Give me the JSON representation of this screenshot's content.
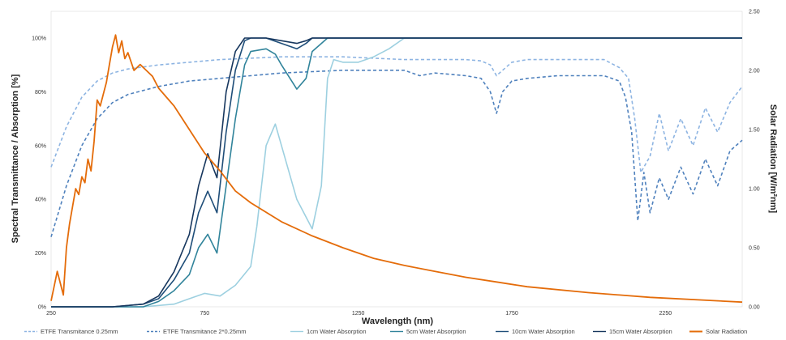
{
  "chart_data": {
    "type": "line",
    "title": "",
    "xlabel": "Wavelength (nm)",
    "ylabel": "Spectral Transmittance / Absorption [%]",
    "y2label": "Solar Radiation [W/m²nm]",
    "xlim": [
      250,
      2500
    ],
    "ylim": [
      0,
      100
    ],
    "y2lim": [
      0,
      2.5
    ],
    "x_ticks": [
      "250",
      "750",
      "1250",
      "1750",
      "2250"
    ],
    "y_ticks": [
      "0%",
      "20%",
      "40%",
      "60%",
      "80%",
      "100%"
    ],
    "y2_ticks": [
      "0.00",
      "0.50",
      "1.00",
      "1.50",
      "2.00",
      "2.50"
    ],
    "grid": false,
    "legend_position": "bottom",
    "series": [
      {
        "name": "ETFE Transmitance 0.25mm",
        "axis": "left",
        "color": "#8db4e2",
        "dash": "4,3",
        "x": [
          250,
          300,
          350,
          400,
          450,
          500,
          600,
          700,
          800,
          900,
          1000,
          1100,
          1200,
          1300,
          1400,
          1500,
          1600,
          1650,
          1680,
          1700,
          1720,
          1750,
          1800,
          1900,
          2000,
          2050,
          2100,
          2130,
          2150,
          2170,
          2200,
          2230,
          2260,
          2300,
          2340,
          2380,
          2420,
          2460,
          2500
        ],
        "y": [
          52,
          67,
          78,
          84,
          87,
          88.5,
          90,
          91,
          92,
          92.5,
          93,
          93,
          93,
          92.5,
          92,
          92,
          92,
          91.5,
          90,
          86,
          88,
          91,
          92,
          92,
          92,
          92,
          89,
          85,
          70,
          50,
          56,
          72,
          58,
          70,
          60,
          74,
          65,
          76,
          82
        ]
      },
      {
        "name": "ETFE Transmitance 2*0.25mm",
        "axis": "left",
        "color": "#4f81bd",
        "dash": "4,3",
        "x": [
          250,
          300,
          350,
          400,
          450,
          500,
          600,
          700,
          800,
          900,
          1000,
          1100,
          1200,
          1300,
          1400,
          1450,
          1500,
          1600,
          1650,
          1680,
          1700,
          1720,
          1750,
          1800,
          1900,
          2000,
          2050,
          2100,
          2120,
          2140,
          2160,
          2180,
          2200,
          2230,
          2260,
          2300,
          2340,
          2380,
          2420,
          2460,
          2500
        ],
        "y": [
          26,
          45,
          60,
          70,
          76,
          79,
          82,
          84,
          85,
          86,
          87,
          87.5,
          88,
          88,
          88,
          86,
          87,
          86,
          85,
          80,
          72,
          80,
          84,
          85,
          86,
          86,
          86,
          84,
          78,
          65,
          32,
          50,
          35,
          48,
          40,
          52,
          42,
          55,
          45,
          58,
          62
        ]
      },
      {
        "name": "1cm Water Absorption",
        "axis": "left",
        "color": "#9dd0e0",
        "dash": "",
        "x": [
          250,
          350,
          450,
          550,
          650,
          700,
          750,
          800,
          850,
          900,
          920,
          950,
          980,
          1000,
          1050,
          1100,
          1130,
          1150,
          1170,
          1200,
          1250,
          1300,
          1350,
          1400,
          1500,
          2500
        ],
        "y": [
          0,
          0,
          0,
          0,
          1,
          3,
          5,
          4,
          8,
          15,
          30,
          60,
          68,
          60,
          40,
          29,
          45,
          85,
          92,
          91,
          91,
          93,
          96,
          100,
          100,
          100
        ]
      },
      {
        "name": "5cm Water Absorption",
        "axis": "left",
        "color": "#31849b",
        "dash": "",
        "x": [
          250,
          350,
          450,
          550,
          600,
          650,
          700,
          730,
          760,
          790,
          820,
          850,
          880,
          900,
          950,
          980,
          1000,
          1050,
          1080,
          1100,
          1150,
          1200,
          2500
        ],
        "y": [
          0,
          0,
          0,
          0,
          2,
          6,
          12,
          22,
          27,
          20,
          45,
          70,
          90,
          95,
          96,
          94,
          90,
          81,
          85,
          95,
          100,
          100,
          100
        ]
      },
      {
        "name": "10cm Water Absorption",
        "axis": "left",
        "color": "#1f4e79",
        "dash": "",
        "x": [
          250,
          350,
          450,
          550,
          600,
          650,
          700,
          730,
          760,
          790,
          820,
          850,
          880,
          900,
          950,
          1000,
          1050,
          1080,
          1100,
          1150,
          2500
        ],
        "y": [
          0,
          0,
          0,
          1,
          3,
          10,
          20,
          35,
          43,
          35,
          65,
          88,
          99,
          100,
          100,
          98,
          96,
          98,
          100,
          100,
          100
        ]
      },
      {
        "name": "15cm Water Absorption",
        "axis": "left",
        "color": "#17375e",
        "dash": "",
        "x": [
          250,
          350,
          450,
          550,
          600,
          650,
          700,
          730,
          760,
          790,
          820,
          850,
          880,
          900,
          950,
          1000,
          1050,
          1080,
          1100,
          1150,
          2500
        ],
        "y": [
          0,
          0,
          0,
          1,
          4,
          13,
          27,
          45,
          57,
          48,
          80,
          95,
          100,
          100,
          100,
          99,
          98,
          99,
          100,
          100,
          100
        ]
      },
      {
        "name": "Solar Radiation",
        "axis": "right",
        "color": "#e46c0a",
        "dash": "",
        "x": [
          250,
          270,
          290,
          300,
          310,
          320,
          330,
          340,
          350,
          360,
          370,
          380,
          390,
          400,
          410,
          420,
          430,
          440,
          450,
          460,
          470,
          480,
          490,
          500,
          520,
          540,
          560,
          580,
          600,
          650,
          700,
          750,
          800,
          850,
          900,
          1000,
          1100,
          1200,
          1300,
          1400,
          1500,
          1600,
          1700,
          1800,
          2000,
          2200,
          2500
        ],
        "y": [
          0.05,
          0.3,
          0.1,
          0.5,
          0.7,
          0.85,
          1.0,
          0.95,
          1.1,
          1.05,
          1.25,
          1.15,
          1.4,
          1.75,
          1.7,
          1.8,
          1.9,
          2.05,
          2.2,
          2.3,
          2.15,
          2.25,
          2.1,
          2.15,
          2.0,
          2.05,
          2.0,
          1.95,
          1.85,
          1.7,
          1.5,
          1.3,
          1.15,
          0.98,
          0.88,
          0.72,
          0.6,
          0.5,
          0.41,
          0.35,
          0.3,
          0.25,
          0.21,
          0.17,
          0.12,
          0.08,
          0.04
        ]
      }
    ]
  }
}
